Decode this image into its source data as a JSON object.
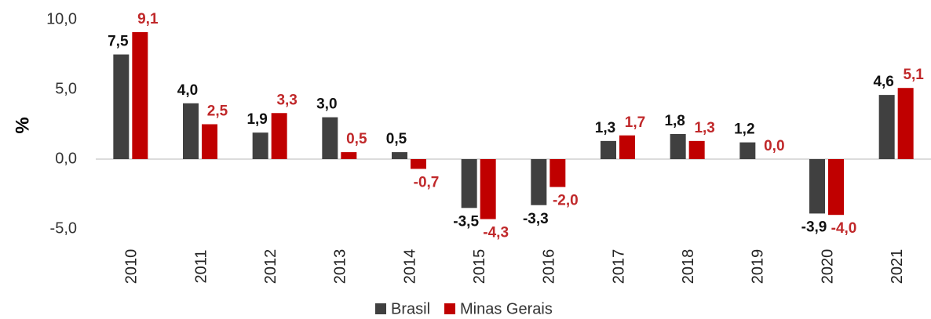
{
  "chart_data": {
    "type": "bar",
    "y_label": "%",
    "categories": [
      "2010",
      "2011",
      "2012",
      "2013",
      "2014",
      "2015",
      "2016",
      "2017",
      "2018",
      "2019",
      "2020",
      "2021"
    ],
    "series": [
      {
        "name": "Brasil",
        "color": "#404040",
        "values": [
          7.5,
          4.0,
          1.9,
          3.0,
          0.5,
          -3.5,
          -3.3,
          1.3,
          1.8,
          1.2,
          -3.9,
          4.6
        ],
        "value_labels": [
          "7,5",
          "4,0",
          "1,9",
          "3,0",
          "0,5",
          "-3,5",
          "-3,3",
          "1,3",
          "1,8",
          "1,2",
          "-3,9",
          "4,6"
        ]
      },
      {
        "name": "Minas Gerais",
        "color": "#c00000",
        "values": [
          9.1,
          2.5,
          3.3,
          0.5,
          -0.7,
          -4.3,
          -2.0,
          1.7,
          1.3,
          0.0,
          -4.0,
          5.1
        ],
        "value_labels": [
          "9,1",
          "2,5",
          "3,3",
          "0,5",
          "-0,7",
          "-4,3",
          "-2,0",
          "1,7",
          "1,3",
          "0,0",
          "-4,0",
          "5,1"
        ]
      }
    ],
    "ylim": [
      -5,
      10
    ],
    "yticks": [
      {
        "value": 10,
        "label": "10,0"
      },
      {
        "value": 5,
        "label": "5,0"
      },
      {
        "value": 0,
        "label": "0,0"
      },
      {
        "value": -5,
        "label": "-5,0"
      }
    ],
    "legend": "bottom"
  }
}
